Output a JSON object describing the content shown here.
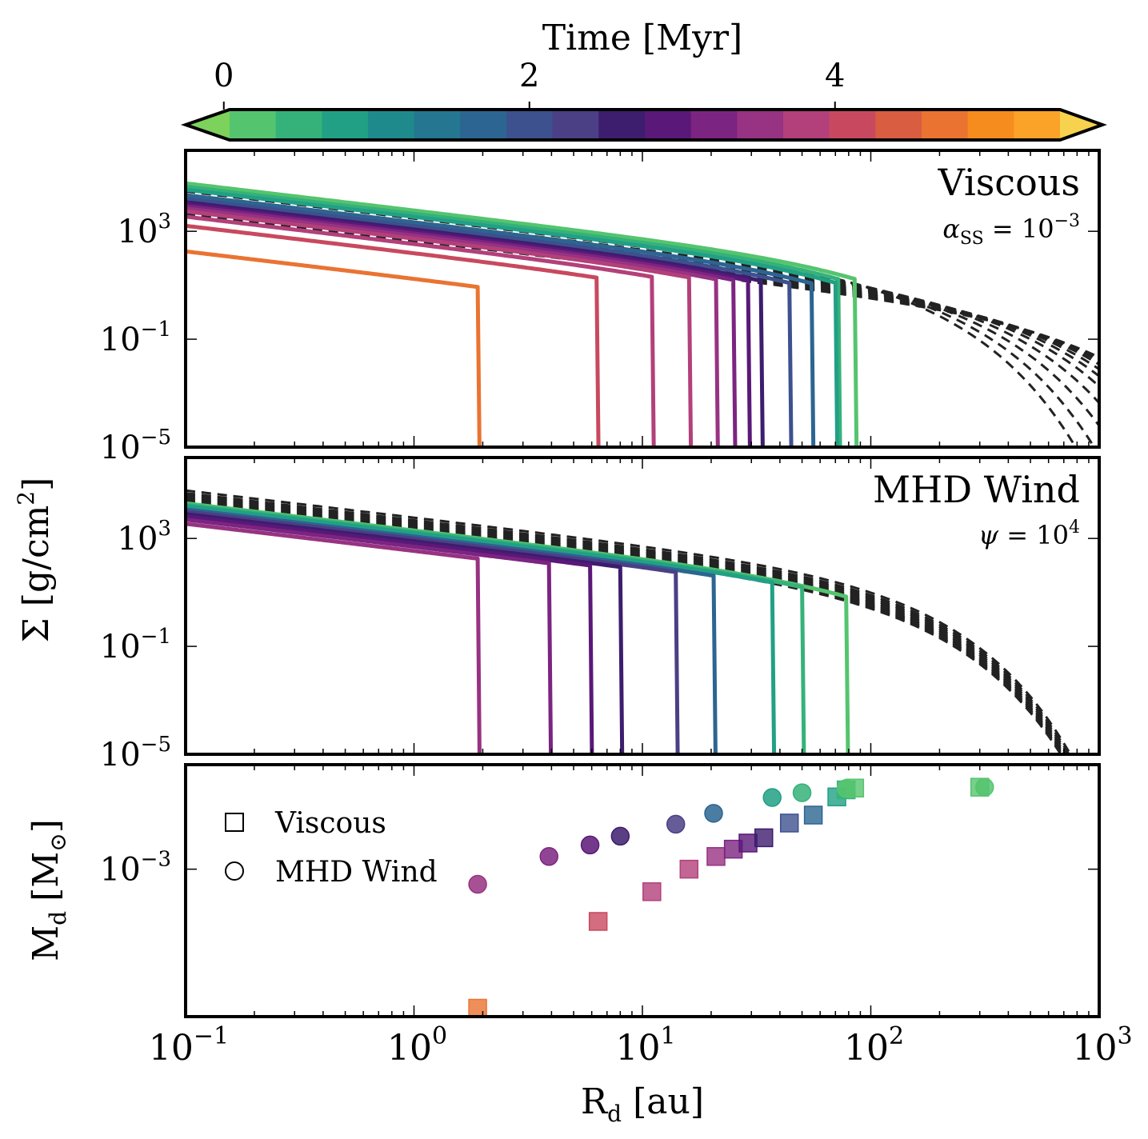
{
  "colorbar": {
    "label": "Time [Myr]",
    "ticks": [
      {
        "value": 0,
        "label": "0"
      },
      {
        "value": 2,
        "label": "2"
      },
      {
        "value": 4,
        "label": "4"
      }
    ],
    "range": [
      -0.25,
      5.75
    ],
    "colors": [
      "#7dd25c",
      "#55c46e",
      "#35b27a",
      "#21a085",
      "#1f8a8c",
      "#257690",
      "#2c6591",
      "#3c518e",
      "#4b3f86",
      "#3d1d6e",
      "#5a1878",
      "#7c2481",
      "#983282",
      "#b3407a",
      "#c8495f",
      "#d85d41",
      "#ea7332",
      "#f68c1e",
      "#fba328",
      "#f7d24f"
    ]
  },
  "axes": {
    "y_label": "Σ [g/cm²]",
    "y_label_math": {
      "text": "Σ [g/cm",
      "sup": "2",
      "end": "]"
    },
    "bottom_y_label": {
      "text": "M",
      "sub": "d",
      "end": "[M",
      "sun": "⊙",
      "close": "]"
    },
    "x_label": {
      "text": "R",
      "sub": "d",
      "end": "[au]"
    },
    "x_ticks": [
      {
        "value": 0.1,
        "base": "10",
        "exp": "−1"
      },
      {
        "value": 1,
        "base": "10",
        "exp": "0"
      },
      {
        "value": 10,
        "base": "10",
        "exp": "1"
      },
      {
        "value": 100,
        "base": "10",
        "exp": "2"
      },
      {
        "value": 1000,
        "base": "10",
        "exp": "3"
      }
    ],
    "sigma_ticks": [
      {
        "value": 1000,
        "base": "10",
        "exp": "3"
      },
      {
        "value": 0.1,
        "base": "10",
        "exp": "−1"
      },
      {
        "value": 1e-05,
        "base": "10",
        "exp": "−5"
      }
    ],
    "mass_ticks": [
      {
        "value": 0.001,
        "base": "10",
        "exp": "−3"
      }
    ]
  },
  "panels": {
    "viscous": {
      "title": "Viscous",
      "param": {
        "sym": "α",
        "sub": "SS",
        "eq": " = 10",
        "sup": "−3"
      }
    },
    "wind": {
      "title": "MHD Wind",
      "param": {
        "sym": "ψ",
        "sub": "",
        "eq": " = 10",
        "sup": "4"
      }
    }
  },
  "legend": {
    "items": [
      {
        "marker": "square",
        "label": "Viscous"
      },
      {
        "marker": "circle",
        "label": "MHD Wind"
      }
    ]
  },
  "chart_data": [
    {
      "type": "line",
      "panel": "viscous",
      "title": "Viscous",
      "xlabel": "R_d [au]",
      "ylabel": "Σ [g/cm²]",
      "xscale": "log",
      "yscale": "log",
      "xlim": [
        0.1,
        1000
      ],
      "ylim": [
        1e-05,
        1000000
      ],
      "series_note": "solid colored = surface density at truncation radius per time step; dashed black = untruncated profiles",
      "solid": [
        {
          "time": 0.0,
          "sigma_01": 60000,
          "rtrunc": 85,
          "rc": 60
        },
        {
          "time": 0.3,
          "sigma_01": 45000,
          "rtrunc": 72,
          "rc": 55
        },
        {
          "time": 0.6,
          "sigma_01": 35000,
          "rtrunc": 70,
          "rc": 50
        },
        {
          "time": 1.5,
          "sigma_01": 22000,
          "rtrunc": 55,
          "rc": 45
        },
        {
          "time": 2.0,
          "sigma_01": 16000,
          "rtrunc": 44,
          "rc": 40
        },
        {
          "time": 2.7,
          "sigma_01": 12000,
          "rtrunc": 33,
          "rc": 36
        },
        {
          "time": 3.0,
          "sigma_01": 10000,
          "rtrunc": 29,
          "rc": 34
        },
        {
          "time": 3.3,
          "sigma_01": 8500,
          "rtrunc": 25,
          "rc": 32
        },
        {
          "time": 3.5,
          "sigma_01": 7000,
          "rtrunc": 21,
          "rc": 30
        },
        {
          "time": 3.75,
          "sigma_01": 5500,
          "rtrunc": 16,
          "rc": 28
        },
        {
          "time": 4.0,
          "sigma_01": 3500,
          "rtrunc": 11,
          "rc": 25
        },
        {
          "time": 4.3,
          "sigma_01": 1600,
          "rtrunc": 6.3,
          "rc": 22
        },
        {
          "time": 4.7,
          "sigma_01": 180,
          "rtrunc": 1.9,
          "rc": 20
        }
      ],
      "dashed": [
        {
          "sigma_01": 40000,
          "rc": 60
        },
        {
          "sigma_01": 30000,
          "rc": 75
        },
        {
          "sigma_01": 23000,
          "rc": 95
        },
        {
          "sigma_01": 18000,
          "rc": 120
        },
        {
          "sigma_01": 14000,
          "rc": 150
        },
        {
          "sigma_01": 11000,
          "rc": 180
        },
        {
          "sigma_01": 9000,
          "rc": 210
        },
        {
          "sigma_01": 7500,
          "rc": 240
        },
        {
          "sigma_01": 6200,
          "rc": 270
        },
        {
          "sigma_01": 5200,
          "rc": 300
        },
        {
          "sigma_01": 4400,
          "rc": 330
        }
      ]
    },
    {
      "type": "line",
      "panel": "wind",
      "title": "MHD Wind",
      "xlabel": "R_d [au]",
      "ylabel": "Σ [g/cm²]",
      "xscale": "log",
      "yscale": "log",
      "xlim": [
        0.1,
        1000
      ],
      "ylim": [
        1e-05,
        1000000
      ],
      "solid": [
        {
          "time": 0.0,
          "sigma_01": 20000,
          "rtrunc": 78,
          "rc": 60
        },
        {
          "time": 0.4,
          "sigma_01": 18000,
          "rtrunc": 50,
          "rc": 60
        },
        {
          "time": 0.7,
          "sigma_01": 16000,
          "rtrunc": 37,
          "rc": 60
        },
        {
          "time": 1.8,
          "sigma_01": 12000,
          "rtrunc": 20.5,
          "rc": 60
        },
        {
          "time": 2.2,
          "sigma_01": 10000,
          "rtrunc": 14,
          "rc": 60
        },
        {
          "time": 2.6,
          "sigma_01": 8000,
          "rtrunc": 8,
          "rc": 60
        },
        {
          "time": 2.9,
          "sigma_01": 6500,
          "rtrunc": 5.9,
          "rc": 60
        },
        {
          "time": 3.2,
          "sigma_01": 5000,
          "rtrunc": 3.9,
          "rc": 60
        },
        {
          "time": 3.4,
          "sigma_01": 3500,
          "rtrunc": 1.9,
          "rc": 60
        }
      ],
      "dashed": [
        {
          "sigma_01": 60000,
          "rc": 55
        },
        {
          "sigma_01": 48000,
          "rc": 55
        },
        {
          "sigma_01": 40000,
          "rc": 55
        },
        {
          "sigma_01": 34000,
          "rc": 55
        },
        {
          "sigma_01": 29000,
          "rc": 55
        },
        {
          "sigma_01": 25000,
          "rc": 55
        },
        {
          "sigma_01": 22000,
          "rc": 55
        },
        {
          "sigma_01": 19500,
          "rc": 55
        },
        {
          "sigma_01": 17500,
          "rc": 55
        },
        {
          "sigma_01": 15500,
          "rc": 55
        }
      ]
    },
    {
      "type": "scatter",
      "panel": "mass",
      "xlabel": "R_d [au]",
      "ylabel": "M_d [M_sun]",
      "xscale": "log",
      "yscale": "log",
      "xlim": [
        0.1,
        1000
      ],
      "ylim": [
        2e-05,
        0.016
      ],
      "series": [
        {
          "name": "Viscous",
          "marker": "square",
          "points": [
            {
              "x": 1.9,
              "y": 2.5e-05,
              "time": 4.7
            },
            {
              "x": 6.4,
              "y": 0.00025,
              "time": 4.3
            },
            {
              "x": 11,
              "y": 0.00055,
              "time": 4.0
            },
            {
              "x": 16,
              "y": 0.001,
              "time": 3.75
            },
            {
              "x": 21,
              "y": 0.0014,
              "time": 3.5
            },
            {
              "x": 25,
              "y": 0.0017,
              "time": 3.3
            },
            {
              "x": 29,
              "y": 0.002,
              "time": 3.0
            },
            {
              "x": 34,
              "y": 0.0023,
              "time": 2.7
            },
            {
              "x": 44,
              "y": 0.0034,
              "time": 2.0
            },
            {
              "x": 56,
              "y": 0.0042,
              "time": 1.5
            },
            {
              "x": 71,
              "y": 0.0068,
              "time": 0.6
            },
            {
              "x": 78,
              "y": 0.0082,
              "time": 0.3
            },
            {
              "x": 85,
              "y": 0.0086,
              "time": 0.0
            },
            {
              "x": 300,
              "y": 0.0088,
              "time": 0.0
            }
          ]
        },
        {
          "name": "MHD Wind",
          "marker": "circle",
          "points": [
            {
              "x": 1.9,
              "y": 0.00067,
              "time": 3.4
            },
            {
              "x": 3.9,
              "y": 0.0014,
              "time": 3.2
            },
            {
              "x": 5.9,
              "y": 0.0019,
              "time": 2.9
            },
            {
              "x": 8,
              "y": 0.0024,
              "time": 2.6
            },
            {
              "x": 14,
              "y": 0.0033,
              "time": 2.2
            },
            {
              "x": 20.5,
              "y": 0.0044,
              "time": 1.8
            },
            {
              "x": 37,
              "y": 0.0067,
              "time": 0.7
            },
            {
              "x": 50,
              "y": 0.0076,
              "time": 0.4
            },
            {
              "x": 78,
              "y": 0.0085,
              "time": 0.1
            },
            {
              "x": 315,
              "y": 0.0088,
              "time": 0.0
            }
          ]
        }
      ]
    }
  ]
}
